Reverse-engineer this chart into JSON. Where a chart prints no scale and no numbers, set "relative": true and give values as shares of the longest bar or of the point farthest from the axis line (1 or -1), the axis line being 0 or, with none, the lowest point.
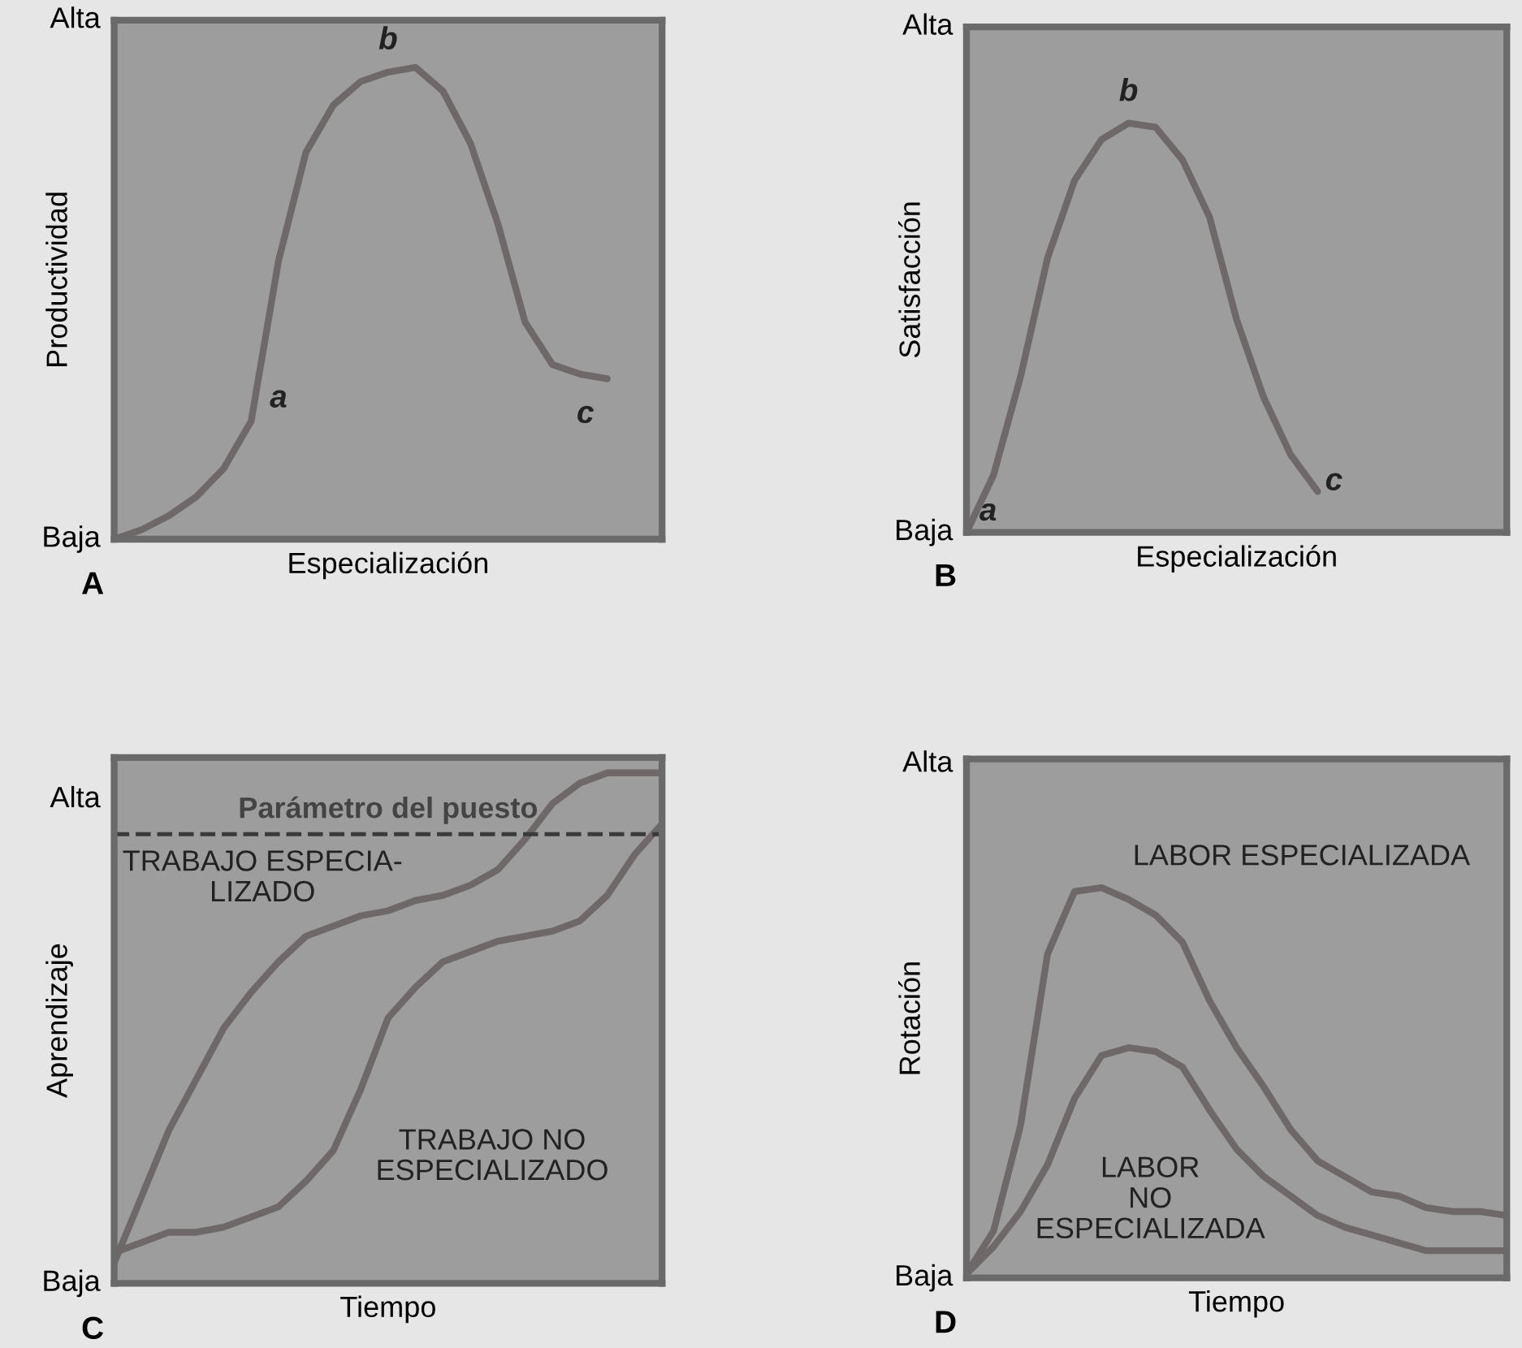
{
  "chart_data": [
    {
      "type": "line",
      "relative": true,
      "xlabel": "Especialización",
      "ylabel": "Productividad",
      "grid": false,
      "categories": [
        null,
        null,
        null,
        null,
        null,
        null,
        null,
        null,
        null,
        null,
        null,
        null,
        null,
        null,
        null,
        null,
        null,
        null,
        null,
        null,
        null
      ],
      "series": [
        {
          "color": "#6f6868",
          "values": [
            0,
            0.02,
            0.05,
            0.09,
            0.15,
            0.25,
            0.59,
            0.82,
            0.92,
            0.97,
            0.99,
            1,
            0.95,
            0.84,
            0.67,
            0.46,
            0.37,
            0.35,
            0.34,
            null,
            null
          ]
        }
      ],
      "annotations": [
        "A",
        "Alta",
        "Baja",
        "a",
        "b",
        "c"
      ]
    },
    {
      "type": "line",
      "relative": true,
      "xlabel": "Especialización",
      "ylabel": "Satisfacción",
      "grid": false,
      "categories": [
        null,
        null,
        null,
        null,
        null,
        null,
        null,
        null,
        null,
        null,
        null,
        null,
        null,
        null,
        null,
        null,
        null,
        null,
        null,
        null,
        null
      ],
      "series": [
        {
          "color": "#6f6868",
          "values": [
            0,
            0.14,
            0.38,
            0.67,
            0.86,
            0.96,
            1,
            0.99,
            0.91,
            0.77,
            0.52,
            0.33,
            0.19,
            0.1,
            null,
            null,
            null,
            null,
            null,
            null,
            null
          ]
        }
      ],
      "annotations": [
        "B",
        "Alta",
        "Baja",
        "a",
        "b",
        "c"
      ]
    },
    {
      "type": "line",
      "relative": true,
      "xlabel": "Tiempo",
      "ylabel": "Aprendizaje",
      "grid": false,
      "categories": [
        null,
        null,
        null,
        null,
        null,
        null,
        null,
        null,
        null,
        null,
        null,
        null,
        null,
        null,
        null,
        null,
        null,
        null,
        null,
        null,
        null
      ],
      "series": [
        {
          "color": "#6f6868",
          "values": [
            0.04,
            0.17,
            0.3,
            0.4,
            0.5,
            0.57,
            0.63,
            0.68,
            0.7,
            0.72,
            0.73,
            0.75,
            0.76,
            0.78,
            0.81,
            0.87,
            0.94,
            0.98,
            1,
            1,
            1
          ]
        },
        {
          "color": "#6f6868",
          "values": [
            0.06,
            0.08,
            0.1,
            0.1,
            0.11,
            0.13,
            0.15,
            0.2,
            0.26,
            0.38,
            0.52,
            0.58,
            0.63,
            0.65,
            0.67,
            0.68,
            0.69,
            0.71,
            0.76,
            0.84,
            0.9
          ]
        }
      ],
      "ref_lines": [
        {
          "axis": "y",
          "value": 0.88,
          "label": "Parámetro del puesto",
          "color": "#3a3a3a",
          "line_style": "dashed"
        }
      ],
      "annotations": [
        "C",
        "Alta",
        "Baja",
        "TRABAJO ESPECIA-\nLIZADO",
        "TRABAJO NO\nESPECIALIZADO"
      ]
    },
    {
      "type": "line",
      "relative": true,
      "xlabel": "Tiempo",
      "ylabel": "Rotación",
      "grid": false,
      "categories": [
        null,
        null,
        null,
        null,
        null,
        null,
        null,
        null,
        null,
        null,
        null,
        null,
        null,
        null,
        null,
        null,
        null,
        null,
        null,
        null,
        null
      ],
      "series": [
        {
          "color": "#6f6868",
          "values": [
            0.01,
            0.12,
            0.39,
            0.83,
            0.99,
            1,
            0.97,
            0.93,
            0.86,
            0.71,
            0.59,
            0.49,
            0.38,
            0.3,
            0.26,
            0.22,
            0.21,
            0.18,
            0.17,
            0.17,
            0.16
          ]
        },
        {
          "color": "#6f6868",
          "values": [
            0.01,
            0.08,
            0.17,
            0.29,
            0.46,
            0.57,
            0.59,
            0.58,
            0.54,
            0.43,
            0.33,
            0.26,
            0.21,
            0.16,
            0.13,
            0.11,
            0.09,
            0.07,
            0.07,
            0.07,
            0.07
          ]
        }
      ],
      "annotations": [
        "D",
        "Alta",
        "Baja",
        "LABOR ESPECIALIZADA",
        "LABOR\nNO\nESPECIALIZADA"
      ]
    }
  ]
}
